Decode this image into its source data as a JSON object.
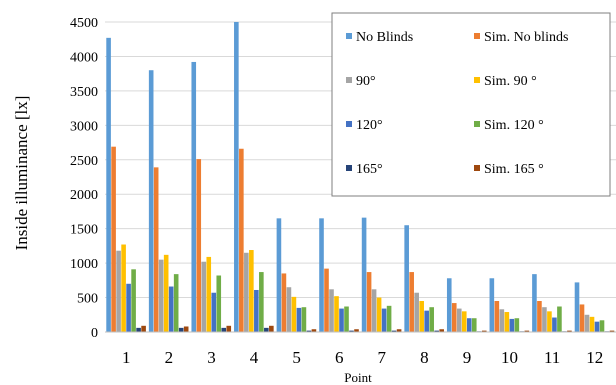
{
  "chart_data": {
    "type": "bar",
    "title": "",
    "xlabel": "Point",
    "ylabel": "Inside illuminance [lx]",
    "ylim": [
      0,
      4500
    ],
    "yticks": [
      0,
      500,
      1000,
      1500,
      2000,
      2500,
      3000,
      3500,
      4000,
      4500
    ],
    "grid": true,
    "legend_position": "top-right",
    "categories": [
      "1",
      "2",
      "3",
      "4",
      "5",
      "6",
      "7",
      "8",
      "9",
      "10",
      "11",
      "12"
    ],
    "series": [
      {
        "name": "No Blinds",
        "color": "#5b9bd5",
        "values": [
          4270,
          3800,
          3920,
          4500,
          1650,
          1650,
          1660,
          1550,
          780,
          780,
          840,
          720
        ]
      },
      {
        "name": "Sim. No blinds",
        "color": "#ed7d31",
        "values": [
          2690,
          2390,
          2510,
          2660,
          850,
          920,
          870,
          870,
          420,
          450,
          450,
          400
        ]
      },
      {
        "name": "90°",
        "color": "#a5a5a5",
        "values": [
          1180,
          1050,
          1020,
          1150,
          650,
          620,
          620,
          570,
          340,
          330,
          360,
          250
        ]
      },
      {
        "name": "Sim. 90 °",
        "color": "#ffc000",
        "values": [
          1270,
          1120,
          1090,
          1190,
          510,
          520,
          500,
          450,
          300,
          290,
          300,
          220
        ]
      },
      {
        "name": "120°",
        "color": "#4472c4",
        "values": [
          700,
          660,
          570,
          610,
          350,
          340,
          340,
          310,
          200,
          190,
          210,
          150
        ]
      },
      {
        "name": "Sim. 120 °",
        "color": "#70ad47",
        "values": [
          910,
          840,
          820,
          870,
          360,
          370,
          380,
          360,
          200,
          200,
          370,
          170
        ]
      },
      {
        "name": "165°",
        "color": "#264478",
        "values": [
          60,
          60,
          60,
          60,
          20,
          20,
          20,
          20,
          10,
          10,
          10,
          10
        ]
      },
      {
        "name": "Sim. 165 °",
        "color": "#9e480e",
        "values": [
          90,
          80,
          90,
          90,
          40,
          40,
          40,
          40,
          20,
          20,
          20,
          20
        ]
      }
    ]
  }
}
